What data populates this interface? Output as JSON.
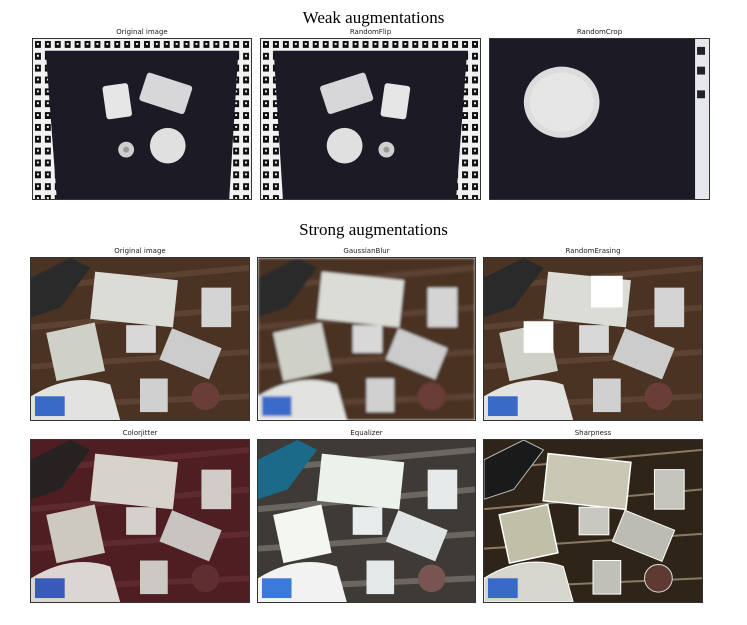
{
  "weak": {
    "title": "Weak augmentations",
    "panels": [
      {
        "caption": "Original image"
      },
      {
        "caption": "RandomFlip"
      },
      {
        "caption": "RandomCrop"
      }
    ]
  },
  "strong": {
    "title": "Strong augmentations",
    "panels": [
      {
        "caption": "Original image"
      },
      {
        "caption": "GaussianBlur"
      },
      {
        "caption": "RandomErasing"
      },
      {
        "caption": "Colorjitter"
      },
      {
        "caption": "Equalizer"
      },
      {
        "caption": "Sharpness"
      }
    ]
  }
}
